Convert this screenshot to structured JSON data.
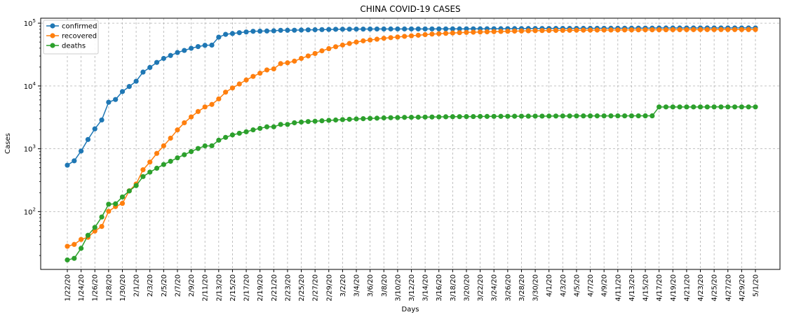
{
  "chart_data": {
    "type": "line",
    "title": "CHINA COVID-19 CASES",
    "xlabel": "Days",
    "ylabel": "Cases",
    "yscale": "log",
    "ylim": [
      12,
      120000
    ],
    "y_ticks": [
      {
        "value": 100,
        "base": "10",
        "exp": "2"
      },
      {
        "value": 1000,
        "base": "10",
        "exp": "3"
      },
      {
        "value": 10000,
        "base": "10",
        "exp": "4"
      },
      {
        "value": 100000,
        "base": "10",
        "exp": "5"
      }
    ],
    "grid": true,
    "legend_position": "top-left",
    "x_tick_labels": [
      "1/22/20",
      "1/24/20",
      "1/26/20",
      "1/28/20",
      "1/30/20",
      "2/1/20",
      "2/3/20",
      "2/5/20",
      "2/7/20",
      "2/9/20",
      "2/11/20",
      "2/13/20",
      "2/15/20",
      "2/17/20",
      "2/19/20",
      "2/21/20",
      "2/23/20",
      "2/25/20",
      "2/27/20",
      "2/29/20",
      "3/2/20",
      "3/4/20",
      "3/6/20",
      "3/8/20",
      "3/10/20",
      "3/12/20",
      "3/14/20",
      "3/16/20",
      "3/18/20",
      "3/20/20",
      "3/22/20",
      "3/24/20",
      "3/26/20",
      "3/28/20",
      "3/30/20",
      "4/1/20",
      "4/3/20",
      "4/5/20",
      "4/7/20",
      "4/9/20",
      "4/11/20",
      "4/13/20",
      "4/15/20",
      "4/17/20",
      "4/19/20",
      "4/21/20",
      "4/23/20",
      "4/25/20",
      "4/27/20",
      "4/29/20",
      "5/1/20"
    ],
    "x": [
      "1/22/20",
      "1/23/20",
      "1/24/20",
      "1/25/20",
      "1/26/20",
      "1/27/20",
      "1/28/20",
      "1/29/20",
      "1/30/20",
      "1/31/20",
      "2/1/20",
      "2/2/20",
      "2/3/20",
      "2/4/20",
      "2/5/20",
      "2/6/20",
      "2/7/20",
      "2/8/20",
      "2/9/20",
      "2/10/20",
      "2/11/20",
      "2/12/20",
      "2/13/20",
      "2/14/20",
      "2/15/20",
      "2/16/20",
      "2/17/20",
      "2/18/20",
      "2/19/20",
      "2/20/20",
      "2/21/20",
      "2/22/20",
      "2/23/20",
      "2/24/20",
      "2/25/20",
      "2/26/20",
      "2/27/20",
      "2/28/20",
      "2/29/20",
      "3/1/20",
      "3/2/20",
      "3/3/20",
      "3/4/20",
      "3/5/20",
      "3/6/20",
      "3/7/20",
      "3/8/20",
      "3/9/20",
      "3/10/20",
      "3/11/20",
      "3/12/20",
      "3/13/20",
      "3/14/20",
      "3/15/20",
      "3/16/20",
      "3/17/20",
      "3/18/20",
      "3/19/20",
      "3/20/20",
      "3/21/20",
      "3/22/20",
      "3/23/20",
      "3/24/20",
      "3/25/20",
      "3/26/20",
      "3/27/20",
      "3/28/20",
      "3/29/20",
      "3/30/20",
      "3/31/20",
      "4/1/20",
      "4/2/20",
      "4/3/20",
      "4/4/20",
      "4/5/20",
      "4/6/20",
      "4/7/20",
      "4/8/20",
      "4/9/20",
      "4/10/20",
      "4/11/20",
      "4/12/20",
      "4/13/20",
      "4/14/20",
      "4/15/20",
      "4/16/20",
      "4/17/20",
      "4/18/20",
      "4/19/20",
      "4/20/20",
      "4/21/20",
      "4/22/20",
      "4/23/20",
      "4/24/20",
      "4/25/20",
      "4/26/20",
      "4/27/20",
      "4/28/20",
      "4/29/20",
      "4/30/20",
      "5/1/20"
    ],
    "series": [
      {
        "name": "confirmed",
        "color": "#1f77b4",
        "values": [
          548,
          643,
          920,
          1406,
          2075,
          2877,
          5509,
          6087,
          8141,
          9802,
          11891,
          16630,
          19716,
          23707,
          27440,
          30587,
          34110,
          36814,
          39829,
          42354,
          44386,
          44759,
          59895,
          66358,
          68413,
          70513,
          72434,
          74211,
          74619,
          75077,
          75550,
          77001,
          77022,
          77241,
          77754,
          78166,
          78600,
          78928,
          79356,
          79932,
          80136,
          80261,
          80386,
          80537,
          80690,
          80770,
          80823,
          80860,
          80887,
          80921,
          80932,
          80945,
          80977,
          81003,
          81033,
          81058,
          81102,
          81156,
          81250,
          81305,
          81435,
          81498,
          81591,
          81661,
          81782,
          81897,
          81999,
          82122,
          82198,
          82279,
          82361,
          82432,
          82511,
          82543,
          82602,
          82665,
          82718,
          82809,
          82883,
          82941,
          83014,
          83134,
          83213,
          83306,
          83356,
          83403,
          83760,
          83787,
          83805,
          83817,
          83853,
          83868,
          83884,
          83899,
          83909,
          83912,
          83918,
          83940,
          83944,
          83956,
          83959
        ]
      },
      {
        "name": "recovered",
        "color": "#ff7f0e",
        "values": [
          28,
          30,
          36,
          39,
          49,
          58,
          101,
          120,
          135,
          214,
          275,
          463,
          614,
          843,
          1115,
          1476,
          1998,
          2595,
          3218,
          3917,
          4635,
          5082,
          6217,
          7977,
          9298,
          10755,
          12462,
          14206,
          15962,
          18014,
          18704,
          22699,
          23383,
          24840,
          27467,
          30053,
          32898,
          36291,
          39279,
          42118,
          44843,
          47450,
          50001,
          52292,
          53944,
          55539,
          57388,
          58804,
          60181,
          61644,
          62901,
          64196,
          65660,
          67017,
          67910,
          68798,
          69755,
          70535,
          71266,
          71857,
          72362,
          72814,
          73280,
          73773,
          74261,
          74720,
          75100,
          75582,
          75923,
          76206,
          76405,
          76565,
          76760,
          76946,
          77207,
          77310,
          77410,
          77567,
          77679,
          77791,
          77877,
          77956,
          78039,
          78200,
          78311,
          78401,
          78474,
          78526,
          78642,
          78719,
          78747,
          78817,
          78854,
          78892,
          78923,
          78962,
          78977,
          78996,
          79011,
          79025,
          79041
        ]
      },
      {
        "name": "deaths",
        "color": "#2ca02c",
        "values": [
          17,
          18,
          26,
          42,
          56,
          82,
          131,
          133,
          171,
          213,
          259,
          361,
          425,
          490,
          562,
          632,
          717,
          804,
          904,
          1011,
          1111,
          1116,
          1368,
          1520,
          1662,
          1765,
          1863,
          2002,
          2114,
          2236,
          2236,
          2441,
          2443,
          2593,
          2663,
          2715,
          2744,
          2788,
          2835,
          2870,
          2912,
          2947,
          2983,
          3015,
          3044,
          3072,
          3100,
          3123,
          3139,
          3161,
          3172,
          3180,
          3193,
          3203,
          3217,
          3230,
          3241,
          3249,
          3253,
          3259,
          3274,
          3274,
          3281,
          3285,
          3291,
          3296,
          3299,
          3304,
          3308,
          3309,
          3316,
          3322,
          3326,
          3330,
          3333,
          3335,
          3335,
          3337,
          3339,
          3340,
          3343,
          3343,
          3345,
          3345,
          3346,
          3346,
          4636,
          4636,
          4636,
          4636,
          4636,
          4636,
          4636,
          4636,
          4637,
          4637,
          4637,
          4637,
          4637,
          4637,
          4637
        ]
      }
    ]
  }
}
